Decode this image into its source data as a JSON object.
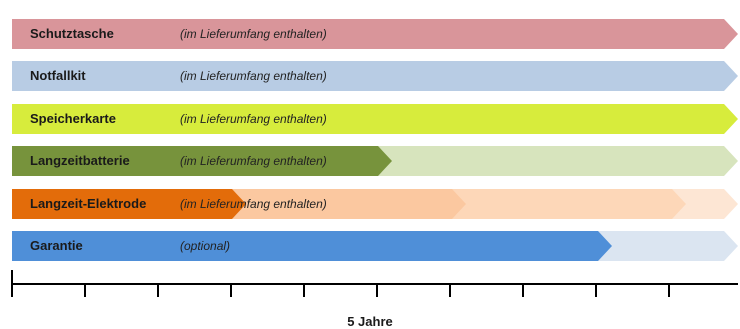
{
  "rows": [
    {
      "label": "Schutztasche",
      "note": "(im Lieferumfang enthalten)",
      "color": "#d9959a"
    },
    {
      "label": "Notfallkit",
      "note": "(im Lieferumfang enthalten)",
      "color": "#b8cce4"
    },
    {
      "label": "Speicherkarte",
      "note": "(im Lieferumfang enthalten)",
      "color": "#d7ec3c"
    },
    {
      "label": "Langzeitbatterie",
      "note": "(im Lieferumfang enthalten)",
      "color": "#77933c",
      "faded_color": "#d7e4bd"
    },
    {
      "label": "Langzeit-Elektrode",
      "note": "(im Lieferumfang enthalten)",
      "color": "#e36c0a",
      "faded_color": "#fbc8a0",
      "faded_color_2": "#fde6d4"
    },
    {
      "label": "Garantie",
      "note": "(optional)",
      "color": "#4f8fd8",
      "faded_color": "#dbe5f1"
    }
  ],
  "axis": {
    "label": "5 Jahre",
    "color": "#000000"
  }
}
